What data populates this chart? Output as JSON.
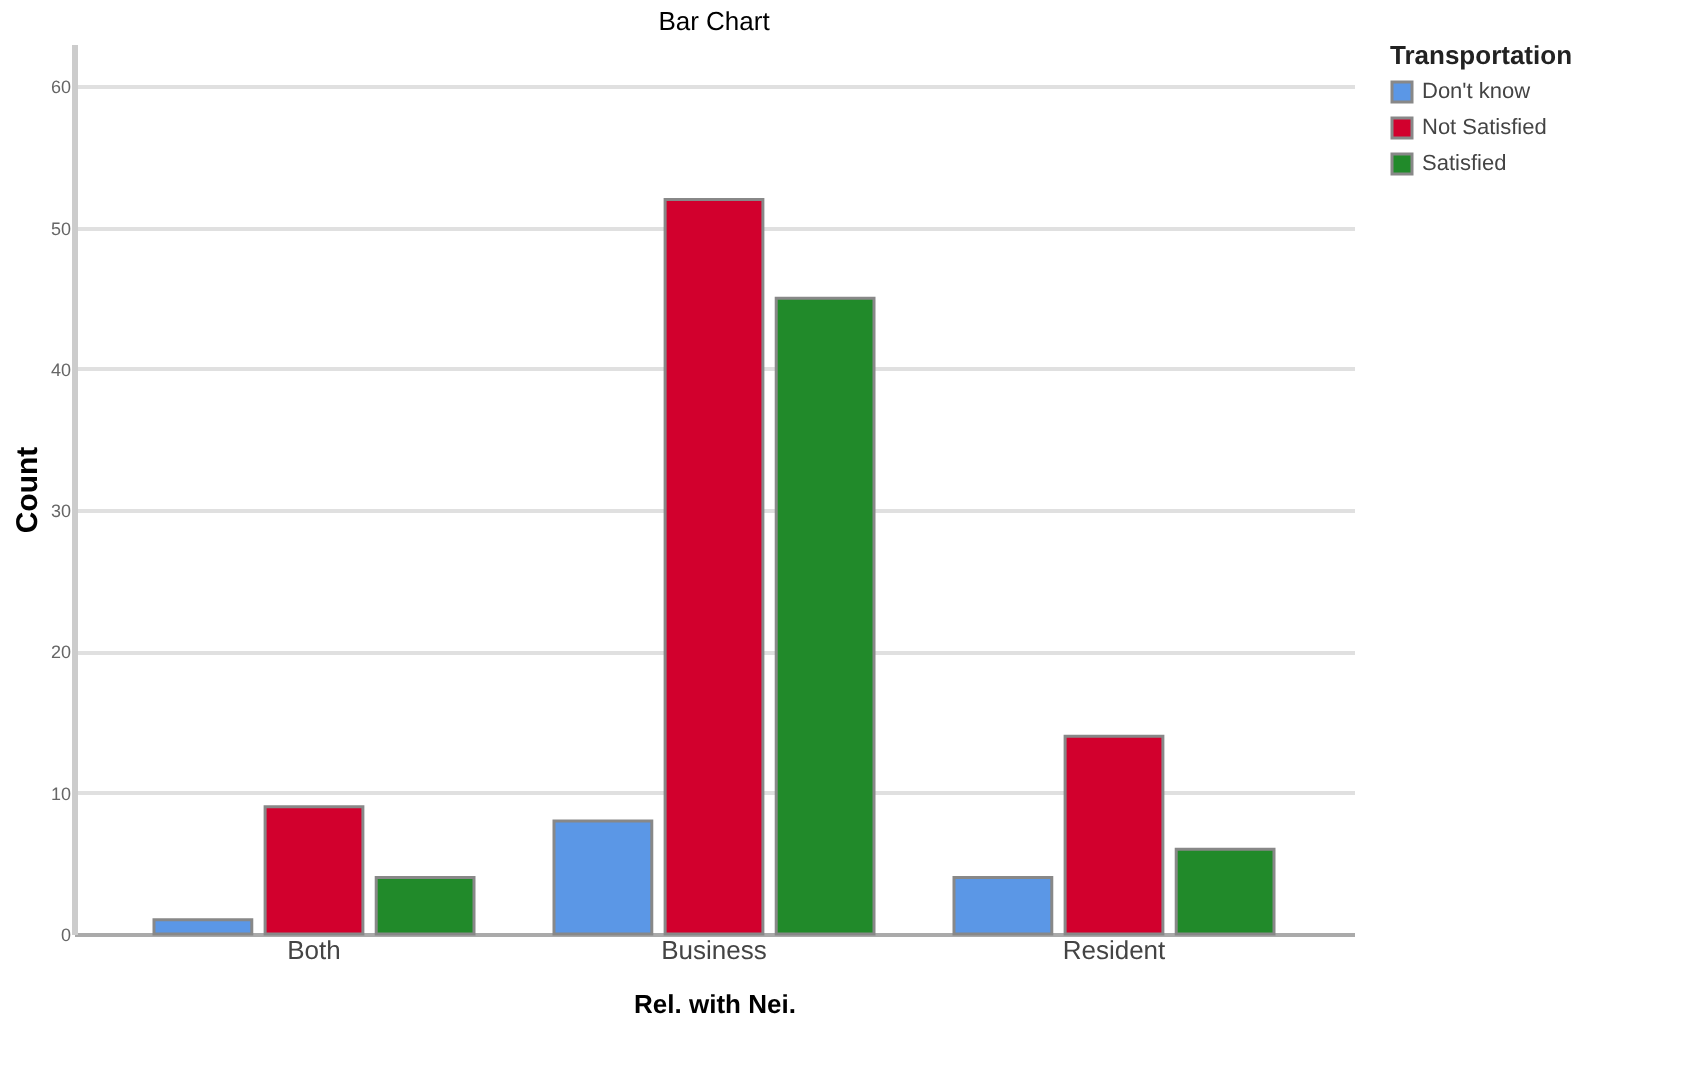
{
  "chart_data": {
    "type": "bar",
    "title": "Bar Chart",
    "xlabel": "Rel. with Nei.",
    "ylabel": "Count",
    "legend_title": "Transportation",
    "categories": [
      "Both",
      "Business",
      "Resident"
    ],
    "series": [
      {
        "name": "Don't know",
        "color": "#5b97e6",
        "values": [
          1,
          8,
          4
        ]
      },
      {
        "name": "Not Satisfied",
        "color": "#d2002d",
        "values": [
          9,
          52,
          14
        ]
      },
      {
        "name": "Satisfied",
        "color": "#218a2a",
        "values": [
          4,
          45,
          6
        ]
      }
    ],
    "ylim": [
      0,
      63
    ],
    "yticks": [
      0,
      10,
      20,
      30,
      40,
      50,
      60
    ],
    "grid": "y",
    "legend": "top right"
  }
}
